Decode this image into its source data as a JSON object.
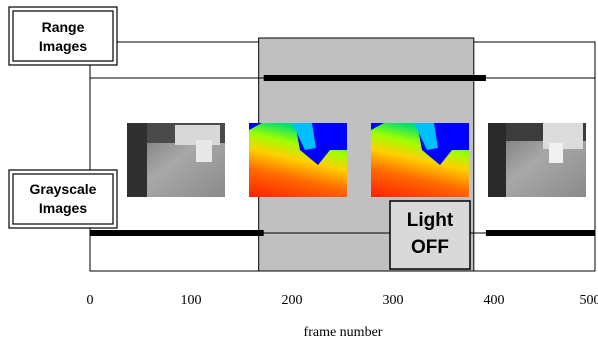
{
  "labels": {
    "range_line1": "Range",
    "range_line2": "Images",
    "gray_line1": "Grayscale",
    "gray_line2": "Images",
    "light_line1": "Light",
    "light_line2": "OFF",
    "xlabel": "frame number"
  },
  "axis": {
    "xlim": [
      0,
      500
    ],
    "ticks": [
      0,
      100,
      200,
      300,
      400,
      500
    ]
  },
  "timelines": {
    "range_images": {
      "active": [
        [
          172,
          392
        ]
      ]
    },
    "grayscale_images": {
      "active": [
        [
          0,
          172
        ],
        [
          392,
          500
        ]
      ]
    }
  },
  "light_off_interval": [
    167,
    380
  ],
  "colors": {
    "shade": "#c0c0c0",
    "bar": "#000000",
    "light_box": "#d9d9d9"
  }
}
